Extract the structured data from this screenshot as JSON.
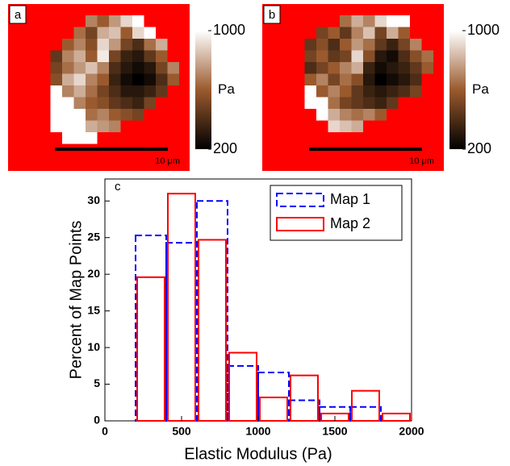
{
  "chart_data": [
    {
      "type": "heatmap",
      "label": "a",
      "background": "#ff0000",
      "colormap": [
        "#000000",
        "#9a5a2e",
        "#ffffff"
      ],
      "clim": [
        200,
        1000
      ],
      "colorbar_ticks": [
        1000,
        200
      ],
      "colorbar_label": "Pa",
      "scale_bar_label": "10 μm",
      "values": [
        [
          null,
          null,
          null,
          null,
          700,
          600,
          750,
          900,
          1000,
          null,
          null,
          null
        ],
        [
          null,
          null,
          null,
          650,
          500,
          800,
          850,
          600,
          900,
          1000,
          null,
          null
        ],
        [
          null,
          null,
          600,
          700,
          550,
          900,
          750,
          500,
          400,
          650,
          800,
          null
        ],
        [
          null,
          450,
          700,
          800,
          600,
          950,
          500,
          350,
          300,
          450,
          600,
          null
        ],
        [
          null,
          500,
          650,
          750,
          850,
          700,
          400,
          300,
          250,
          300,
          500,
          700
        ],
        [
          null,
          550,
          800,
          900,
          700,
          600,
          350,
          250,
          200,
          250,
          400,
          600
        ],
        [
          null,
          1000,
          700,
          800,
          650,
          500,
          400,
          300,
          300,
          350,
          450,
          null
        ],
        [
          null,
          1000,
          1000,
          700,
          600,
          550,
          450,
          400,
          350,
          500,
          null,
          null
        ],
        [
          null,
          1000,
          1000,
          1000,
          650,
          700,
          600,
          550,
          500,
          null,
          null,
          null
        ],
        [
          null,
          1000,
          1000,
          1000,
          800,
          750,
          700,
          null,
          null,
          null,
          null,
          null
        ],
        [
          null,
          null,
          1000,
          1000,
          1000,
          null,
          null,
          null,
          null,
          null,
          null,
          null
        ]
      ]
    },
    {
      "type": "heatmap",
      "label": "b",
      "background": "#ff0000",
      "colormap": [
        "#000000",
        "#9a5a2e",
        "#ffffff"
      ],
      "clim": [
        200,
        1000
      ],
      "colorbar_ticks": [
        1000,
        200
      ],
      "colorbar_label": "Pa",
      "scale_bar_label": "10 μm",
      "values": [
        [
          null,
          null,
          null,
          null,
          650,
          800,
          700,
          900,
          1000,
          1000,
          null,
          null
        ],
        [
          null,
          null,
          500,
          600,
          450,
          700,
          850,
          500,
          800,
          600,
          null,
          null
        ],
        [
          null,
          450,
          550,
          400,
          600,
          750,
          650,
          450,
          350,
          500,
          700,
          null
        ],
        [
          null,
          500,
          600,
          450,
          500,
          900,
          550,
          300,
          250,
          400,
          550,
          650
        ],
        [
          null,
          400,
          500,
          600,
          700,
          800,
          350,
          250,
          300,
          350,
          450,
          600
        ],
        [
          null,
          600,
          700,
          500,
          650,
          550,
          300,
          200,
          250,
          300,
          400,
          null
        ],
        [
          null,
          1000,
          600,
          700,
          600,
          450,
          350,
          300,
          350,
          400,
          500,
          null
        ],
        [
          null,
          1000,
          1000,
          650,
          500,
          450,
          400,
          350,
          450,
          null,
          null,
          null
        ],
        [
          null,
          null,
          1000,
          800,
          700,
          650,
          700,
          600,
          null,
          null,
          null,
          null
        ],
        [
          null,
          null,
          null,
          900,
          850,
          800,
          null,
          null,
          null,
          null,
          null,
          null
        ]
      ]
    },
    {
      "type": "histogram",
      "label": "c",
      "xlabel": "Elastic Modulus (Pa)",
      "ylabel": "Percent of Map Points",
      "bins": [
        200,
        400,
        600,
        800,
        1000,
        1200,
        1400,
        1600,
        1800,
        2000
      ],
      "xlim": [
        0,
        2000
      ],
      "xticks": [
        0,
        500,
        1000,
        1500,
        2000
      ],
      "ylim": [
        0,
        33
      ],
      "yticks": [
        0,
        5,
        10,
        15,
        20,
        25,
        30
      ],
      "legend": "upper right",
      "series": [
        {
          "name": "Map 1",
          "color": "#0000ff",
          "linestyle": "dashed",
          "values": [
            25.3,
            24.3,
            30,
            7.5,
            6.6,
            2.8,
            1.9,
            1.9,
            0
          ]
        },
        {
          "name": "Map 2",
          "color": "#ff0000",
          "linestyle": "solid",
          "values": [
            19.6,
            31,
            24.7,
            9.3,
            3.2,
            6.2,
            1.0,
            4.1,
            1.0
          ]
        }
      ]
    }
  ]
}
